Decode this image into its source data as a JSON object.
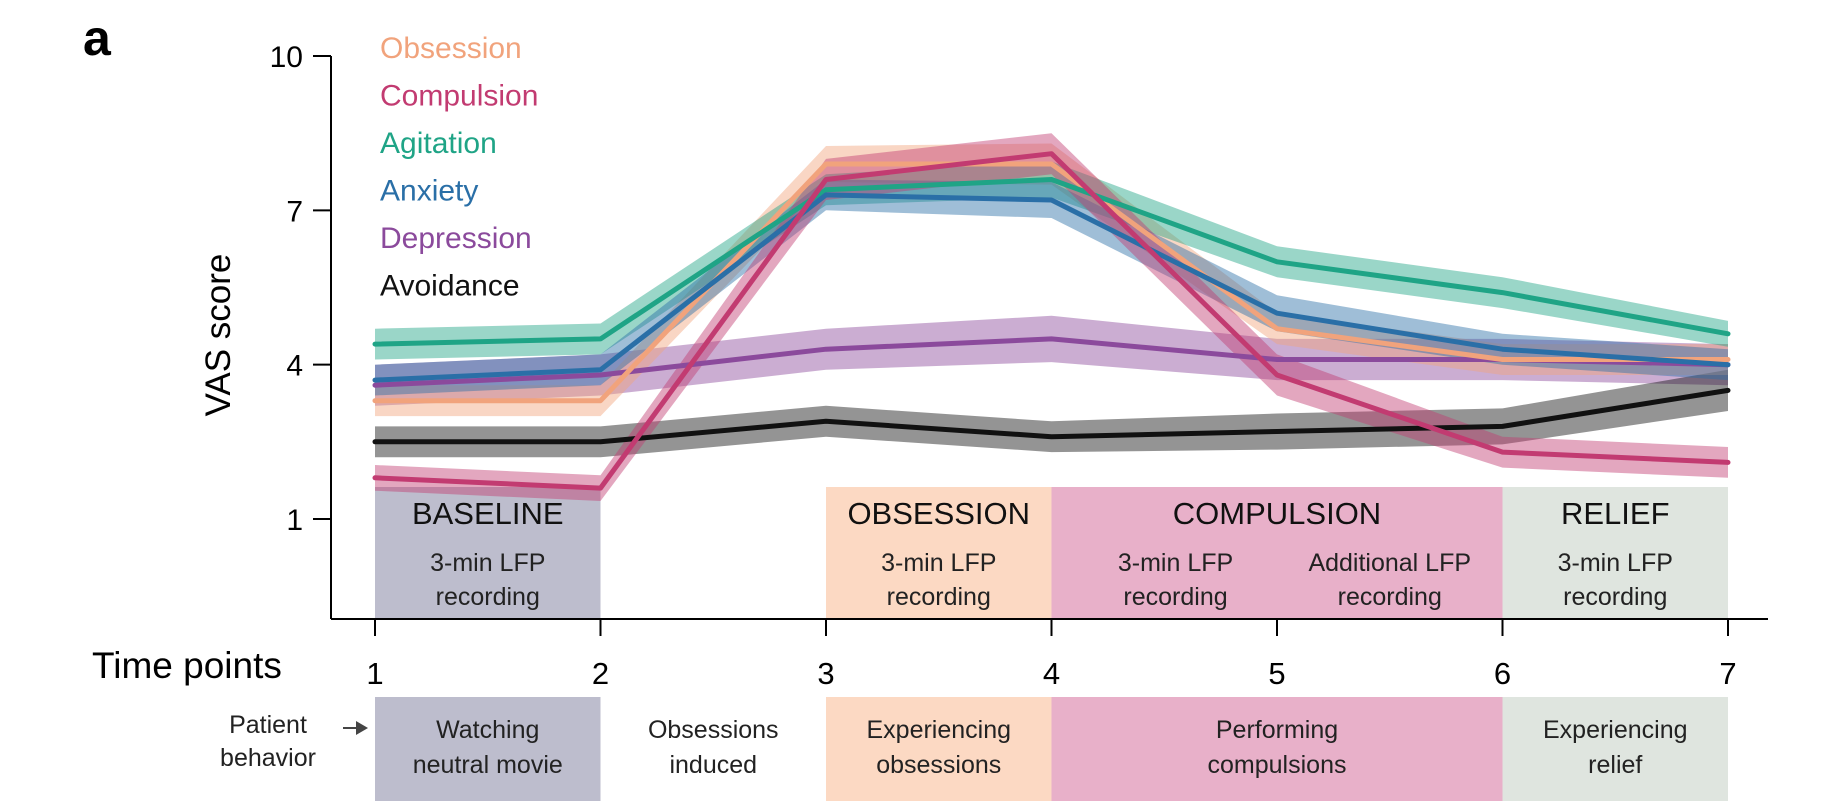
{
  "panel_label": "a",
  "chart_data": {
    "type": "line",
    "ylabel": "VAS score",
    "xlabel": "Time points",
    "ylim": [
      -1,
      10
    ],
    "yticks": [
      1,
      4,
      7,
      10
    ],
    "xticks": [
      1,
      2,
      3,
      4,
      5,
      6,
      7
    ],
    "legend_placement": "top-left",
    "series": [
      {
        "name": "Obsession",
        "color": "#f1a37c",
        "values": [
          3.3,
          3.3,
          7.9,
          7.9,
          4.7,
          4.1,
          4.1
        ],
        "ci": [
          0.3,
          0.3,
          0.35,
          0.4,
          0.3,
          0.3,
          0.3
        ]
      },
      {
        "name": "Compulsion",
        "color": "#c23b71",
        "values": [
          1.8,
          1.6,
          7.6,
          8.1,
          3.8,
          2.3,
          2.1
        ],
        "ci": [
          0.25,
          0.25,
          0.4,
          0.4,
          0.4,
          0.3,
          0.3
        ]
      },
      {
        "name": "Agitation",
        "color": "#1fa486",
        "values": [
          4.4,
          4.5,
          7.4,
          7.6,
          6.0,
          5.4,
          4.6
        ],
        "ci": [
          0.3,
          0.3,
          0.3,
          0.35,
          0.3,
          0.3,
          0.25
        ]
      },
      {
        "name": "Anxiety",
        "color": "#2a6fa7",
        "values": [
          3.7,
          3.9,
          7.3,
          7.2,
          5.0,
          4.3,
          4.0
        ],
        "ci": [
          0.3,
          0.3,
          0.3,
          0.35,
          0.35,
          0.3,
          0.3
        ]
      },
      {
        "name": "Depression",
        "color": "#8b4a9c",
        "values": [
          3.6,
          3.8,
          4.3,
          4.5,
          4.1,
          4.1,
          4.0
        ],
        "ci": [
          0.4,
          0.4,
          0.4,
          0.45,
          0.4,
          0.4,
          0.4
        ]
      },
      {
        "name": "Avoidance",
        "color": "#111111",
        "values": [
          2.5,
          2.5,
          2.9,
          2.6,
          2.7,
          2.8,
          3.5
        ],
        "ci": [
          0.3,
          0.3,
          0.3,
          0.3,
          0.35,
          0.35,
          0.4
        ]
      }
    ],
    "band_opacity": 0.45
  },
  "phases": [
    {
      "title": "BASELINE",
      "lines": [
        "3-min LFP",
        "recording"
      ],
      "from": 1,
      "to": 2,
      "color": "#bdbdcd"
    },
    {
      "title": "OBSESSION",
      "lines": [
        "3-min LFP",
        "recording"
      ],
      "from": 3,
      "to": 4,
      "color": "#fcd9c3"
    },
    {
      "title": "COMPULSION",
      "from": 4,
      "to": 6,
      "color": "#e8b0c9",
      "subs": [
        {
          "lines": [
            "3-min LFP",
            "recording"
          ],
          "center": 4.55
        },
        {
          "lines": [
            "Additional LFP",
            "recording"
          ],
          "center": 5.5
        }
      ]
    },
    {
      "title": "RELIEF",
      "lines": [
        "3-min LFP",
        "recording"
      ],
      "from": 6,
      "to": 7,
      "color": "#dfe5df"
    }
  ],
  "behavior": {
    "label_lines": [
      "Patient",
      "behavior"
    ],
    "items": [
      {
        "lines": [
          "Watching",
          "neutral movie"
        ],
        "from": 1,
        "to": 2,
        "color": "#bdbdcd"
      },
      {
        "lines": [
          "Obsessions",
          "induced"
        ],
        "from": 2,
        "to": 3,
        "color": "#ffffff"
      },
      {
        "lines": [
          "Experiencing",
          "obsessions"
        ],
        "from": 3,
        "to": 4,
        "color": "#fcd9c3"
      },
      {
        "lines": [
          "Performing",
          "compulsions"
        ],
        "from": 4,
        "to": 6,
        "color": "#e8b0c9"
      },
      {
        "lines": [
          "Experiencing",
          "relief"
        ],
        "from": 6,
        "to": 7,
        "color": "#dfe5df"
      }
    ]
  }
}
